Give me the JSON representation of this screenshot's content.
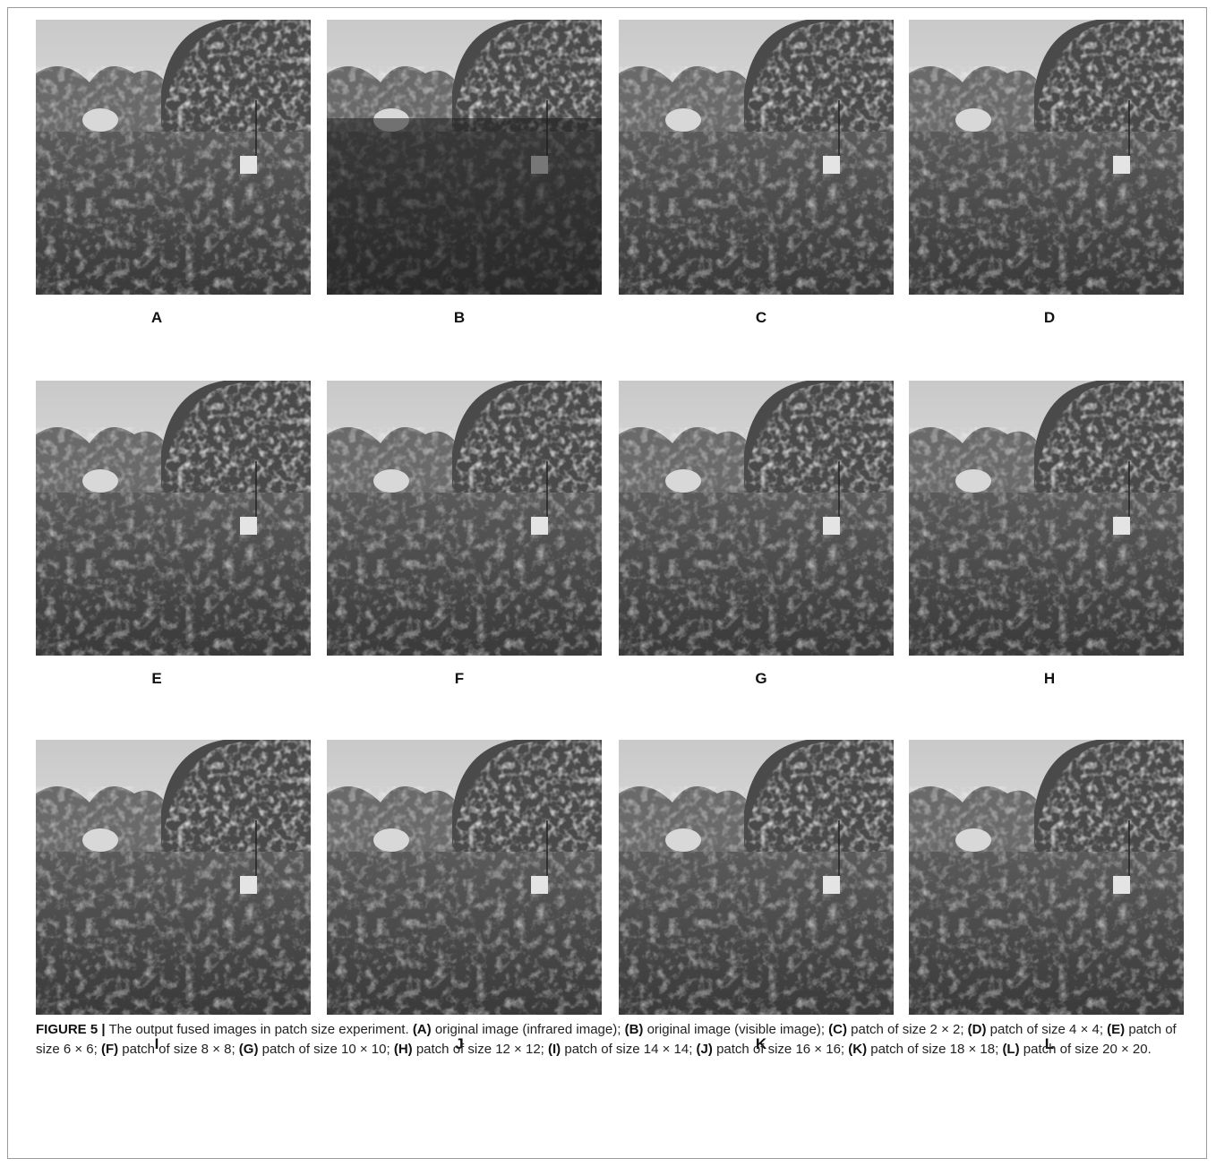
{
  "figure": {
    "panels": [
      {
        "label": "A"
      },
      {
        "label": "B"
      },
      {
        "label": "C"
      },
      {
        "label": "D"
      },
      {
        "label": "E"
      },
      {
        "label": "F"
      },
      {
        "label": "G"
      },
      {
        "label": "H"
      },
      {
        "label": "I"
      },
      {
        "label": "J"
      },
      {
        "label": "K"
      },
      {
        "label": "L"
      }
    ],
    "caption": {
      "label": "FIGURE 5 |",
      "text": "The output fused images in patch size experiment.",
      "items": [
        {
          "tag": "(A)",
          "text": "original image (infrared image);"
        },
        {
          "tag": "(B)",
          "text": "original image (visible image);"
        },
        {
          "tag": "(C)",
          "text": "patch of size 2 × 2;"
        },
        {
          "tag": "(D)",
          "text": "patch of size 4 × 4;"
        },
        {
          "tag": "(E)",
          "text": "patch of size 6 × 6;"
        },
        {
          "tag": "(F)",
          "text": "patch of size 8 × 8;"
        },
        {
          "tag": "(G)",
          "text": "patch of size 10 × 10;"
        },
        {
          "tag": "(H)",
          "text": "patch of size 12 × 12;"
        },
        {
          "tag": "(I)",
          "text": "patch of size 14 × 14;"
        },
        {
          "tag": "(J)",
          "text": "patch of size 16 × 16;"
        },
        {
          "tag": "(K)",
          "text": "patch of size 18 × 18;"
        },
        {
          "tag": "(L)",
          "text": "patch of size 20 × 20."
        }
      ]
    }
  }
}
